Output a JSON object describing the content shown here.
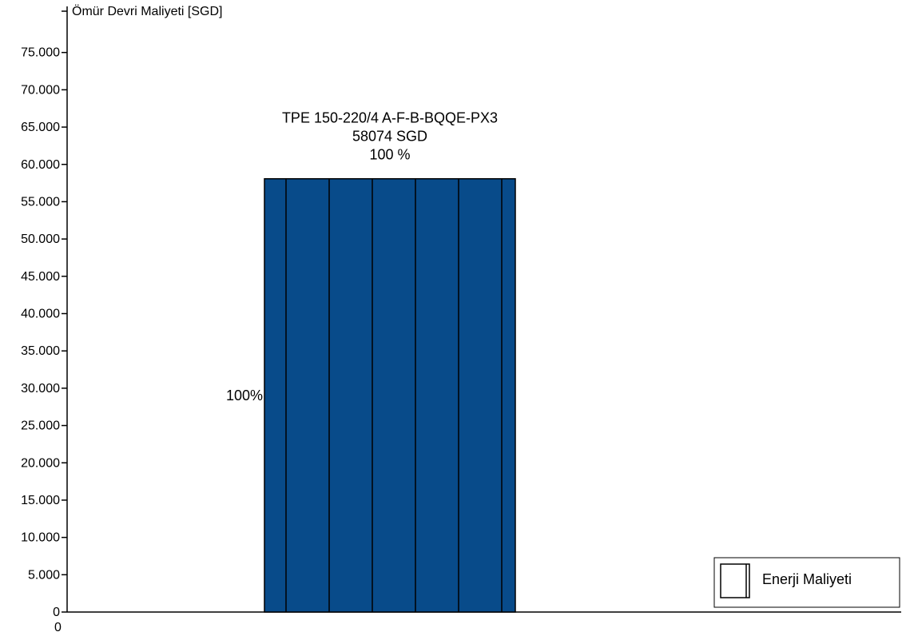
{
  "chart_data": {
    "type": "bar",
    "ylabel": "Ömür Devri Maliyeti [SGD]",
    "ylim": [
      0,
      80000
    ],
    "yticks": [
      0,
      5000,
      10000,
      15000,
      20000,
      25000,
      30000,
      35000,
      40000,
      45000,
      50000,
      55000,
      60000,
      65000,
      70000,
      75000
    ],
    "ytick_labels": [
      "0",
      "5.000",
      "10.000",
      "15.000",
      "20.000",
      "25.000",
      "30.000",
      "35.000",
      "40.000",
      "45.000",
      "50.000",
      "55.000",
      "60.000",
      "65.000",
      "70.000",
      "75.000"
    ],
    "x_origin_label": "0",
    "bar": {
      "category": "TPE 150-220/4 A-F-B-BQQE-PX3",
      "value": 58074,
      "value_label": "58074 SGD",
      "percent_label": "100 %",
      "segment_percent_label": "100%",
      "color": "#084b8a",
      "segments": 6
    },
    "legend": {
      "placement": "bottom-right",
      "entries": [
        {
          "name": "Enerji Maliyeti",
          "color": "#ffffff"
        }
      ]
    },
    "grid": false
  }
}
